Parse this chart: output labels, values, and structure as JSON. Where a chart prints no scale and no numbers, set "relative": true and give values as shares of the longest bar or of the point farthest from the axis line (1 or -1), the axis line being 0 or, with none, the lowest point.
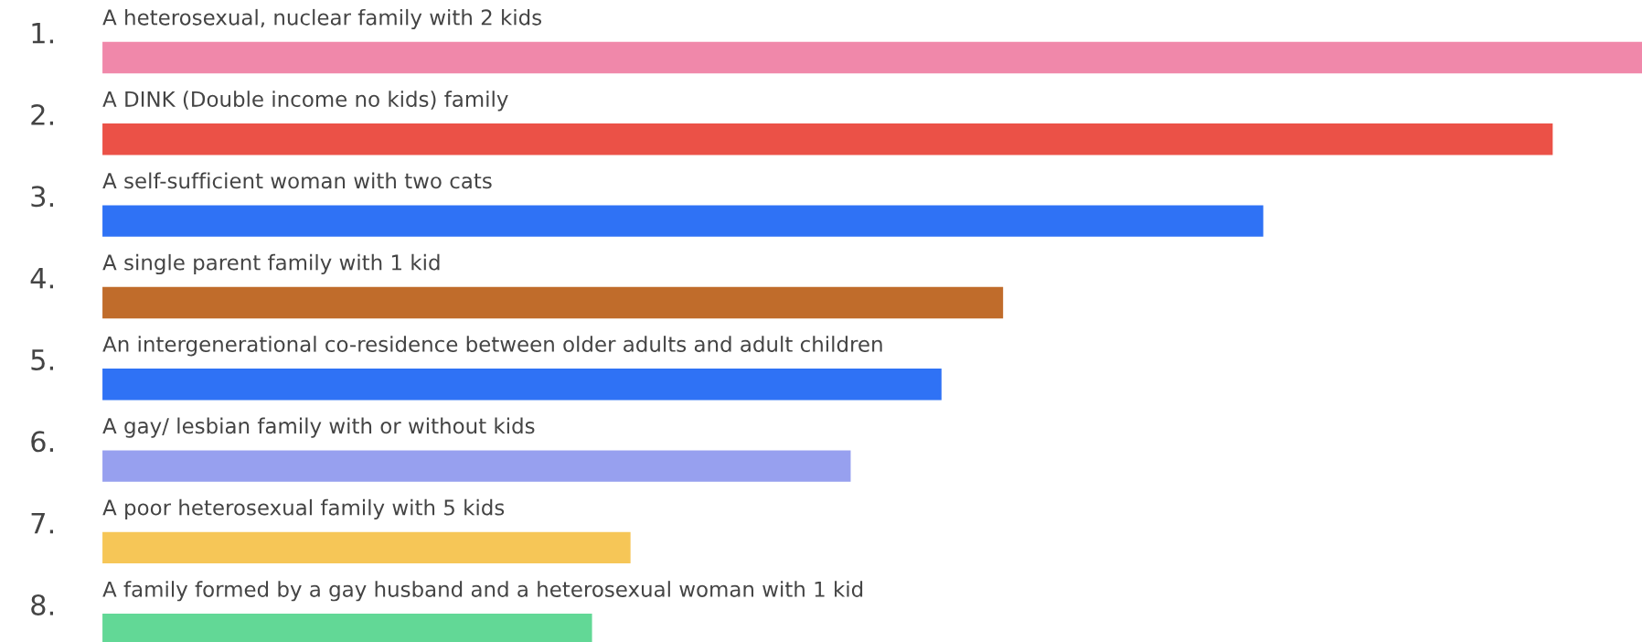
{
  "chart_data": {
    "type": "bar",
    "orientation": "horizontal",
    "relative": true,
    "categories": [
      "A heterosexual, nuclear family with 2 kids",
      "A DINK (Double income no kids) family",
      "A self-sufficient woman with two cats",
      "A single parent family with 1 kid",
      "An intergenerational co-residence between older adults and adult children",
      "A gay/ lesbian family with or without kids",
      "A poor heterosexual family with 5 kids",
      "A family formed by a gay husband and a heterosexual woman with 1 kid"
    ],
    "values": [
      1,
      0.942,
      0.754,
      0.585,
      0.545,
      0.486,
      0.343,
      0.318
    ],
    "colors": [
      "#f088aa",
      "#eb5147",
      "#2f72f5",
      "#c06c2b",
      "#2f72f5",
      "#97a0ef",
      "#f6c657",
      "#62d896"
    ],
    "annotations": [
      "1.",
      "2.",
      "3.",
      "4.",
      "5.",
      "6.",
      "7.",
      "8."
    ]
  }
}
